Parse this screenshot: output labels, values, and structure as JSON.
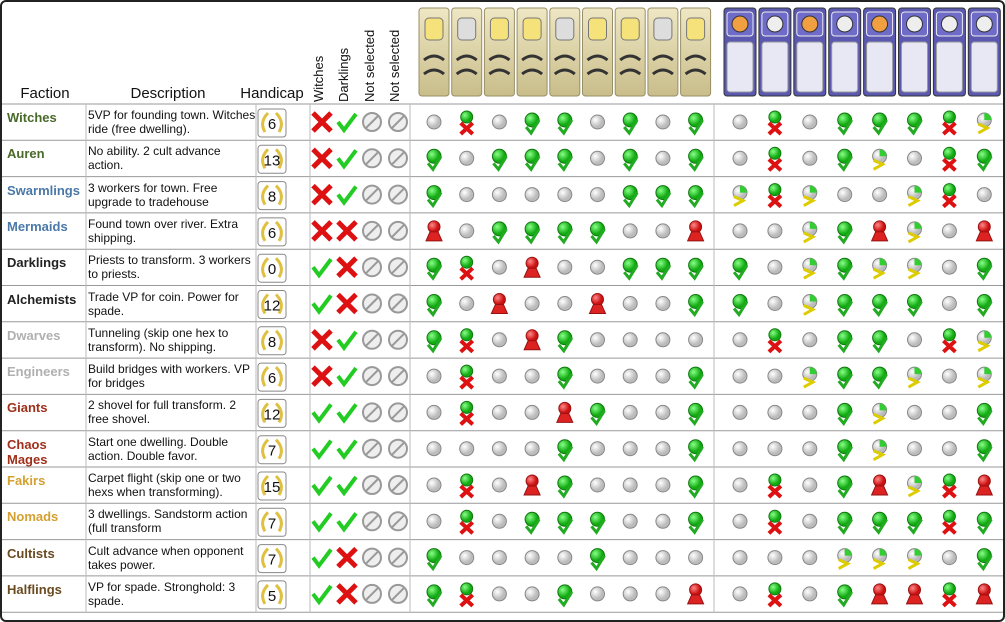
{
  "header": {
    "faction": "Faction",
    "description": "Description",
    "handicap": "Handicap",
    "witches": "Witches",
    "darklings": "Darklings",
    "not_selected_1": "Not selected",
    "not_selected_2": "Not selected"
  },
  "factions": [
    {
      "name": "Witches",
      "color": "#4a6a2a",
      "description": "5VP for founding town. Witches ride (free dwelling).",
      "handicap": 6
    },
    {
      "name": "Auren",
      "color": "#4a6a2a",
      "description": "No ability. 2 cult advance action.",
      "handicap": 13
    },
    {
      "name": "Swarmlings",
      "color": "#4a78a8",
      "description": "3 workers for town. Free upgrade to tradehouse",
      "handicap": 8
    },
    {
      "name": "Mermaids",
      "color": "#4a78a8",
      "description": "Found town over river. Extra shipping.",
      "handicap": 6
    },
    {
      "name": "Darklings",
      "color": "#222222",
      "description": "Priests to transform. 3 workers to priests.",
      "handicap": 0
    },
    {
      "name": "Alchemists",
      "color": "#222222",
      "description": "Trade VP for coin. Power for spade.",
      "handicap": 12
    },
    {
      "name": "Dwarves",
      "color": "#b0b0b0",
      "description": "Tunneling (skip one hex to transform). No shipping.",
      "handicap": 8
    },
    {
      "name": "Engineers",
      "color": "#b0b0b0",
      "description": "Build bridges with workers. VP for bridges",
      "handicap": 6
    },
    {
      "name": "Giants",
      "color": "#a0301a",
      "description": "2 shovel for full transform. 2 free shovel.",
      "handicap": 12
    },
    {
      "name": "Chaos Mages",
      "color": "#a0301a",
      "description": "Start one dwelling. Double action. Double favor.",
      "handicap": 7
    },
    {
      "name": "Fakirs",
      "color": "#d4a030",
      "description": "Carpet flight (skip one or two hexs when transforming).",
      "handicap": 15
    },
    {
      "name": "Nomads",
      "color": "#d4a030",
      "description": "3 dwellings. Sandstorm action (full transform",
      "handicap": 7
    },
    {
      "name": "Cultists",
      "color": "#6a4a20",
      "description": "Cult advance when opponent takes power.",
      "handicap": 7
    },
    {
      "name": "Halflings",
      "color": "#6a4a20",
      "description": "VP for spade. Stronghold: 3 spade.",
      "handicap": 5
    }
  ]
}
